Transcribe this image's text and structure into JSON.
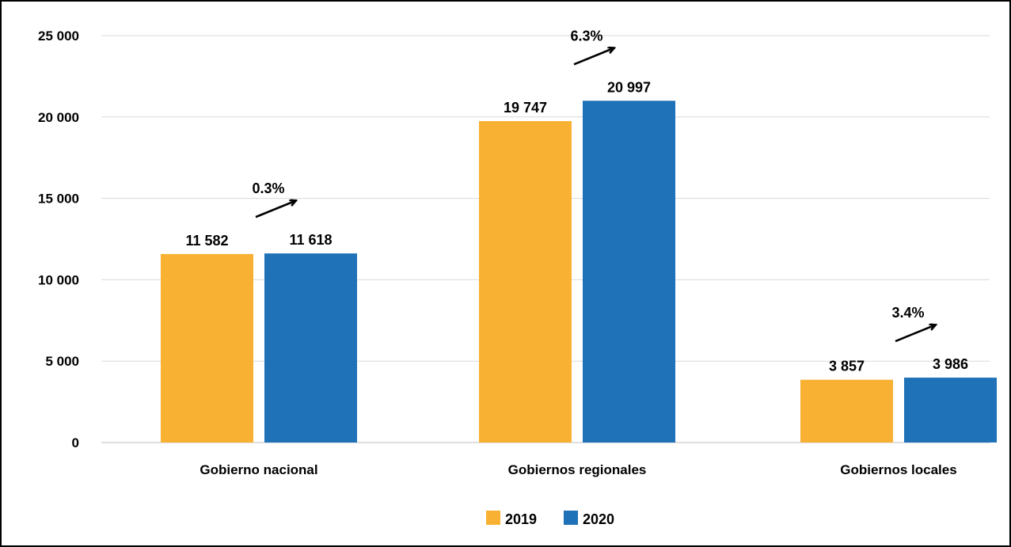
{
  "chart_data": {
    "type": "bar",
    "categories": [
      "Gobierno nacional",
      "Gobiernos regionales",
      "Gobiernos locales"
    ],
    "series": [
      {
        "name": "2019",
        "values": [
          11582,
          19747,
          3857
        ],
        "labels": [
          "11 582",
          "19 747",
          "3 857"
        ],
        "color": "#F8B133"
      },
      {
        "name": "2020",
        "values": [
          11618,
          20997,
          3986
        ],
        "labels": [
          "11 618",
          "20 997",
          "3 986"
        ],
        "color": "#1F71B8"
      }
    ],
    "growth_annotations": [
      "0.3%",
      "6.3%",
      "3.4%"
    ],
    "ylim": [
      0,
      25000
    ],
    "yticks": [
      0,
      5000,
      10000,
      15000,
      20000,
      25000
    ],
    "ytick_labels": [
      "0",
      "5 000",
      "10 000",
      "15 000",
      "20 000",
      "25 000"
    ],
    "grid": true,
    "legend_position": "bottom-center",
    "title": "",
    "xlabel": "",
    "ylabel": ""
  }
}
